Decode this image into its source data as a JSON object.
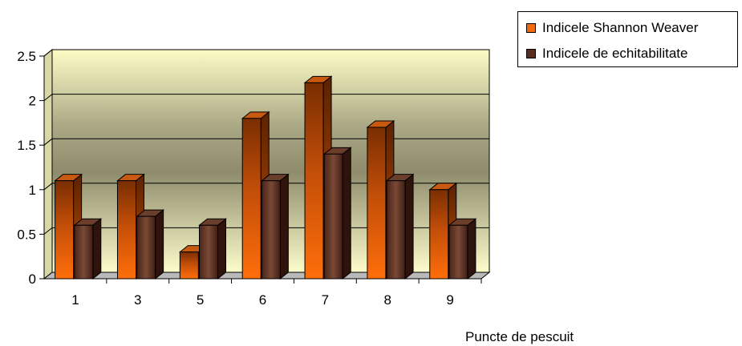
{
  "chart_data": {
    "type": "bar",
    "categories": [
      "1",
      "3",
      "5",
      "6",
      "7",
      "8",
      "9"
    ],
    "series": [
      {
        "name": "Indicele Shannon Weaver",
        "values": [
          1.1,
          1.1,
          0.3,
          1.8,
          2.2,
          1.7,
          1.0
        ],
        "color": "#f26a10"
      },
      {
        "name": "Indicele de echitabilitate",
        "values": [
          0.6,
          0.7,
          0.6,
          1.1,
          1.4,
          1.1,
          0.6
        ],
        "color": "#5a2d1e"
      }
    ],
    "title": "",
    "xlabel": "Puncte de pescuit",
    "ylabel": "",
    "ylim": [
      0,
      2.5
    ],
    "yticks": [
      "0",
      "0.5",
      "1",
      "1.5",
      "2",
      "2.5"
    ],
    "grid": true,
    "legend_position": "top-right",
    "plot_background": "#fefcc8"
  }
}
